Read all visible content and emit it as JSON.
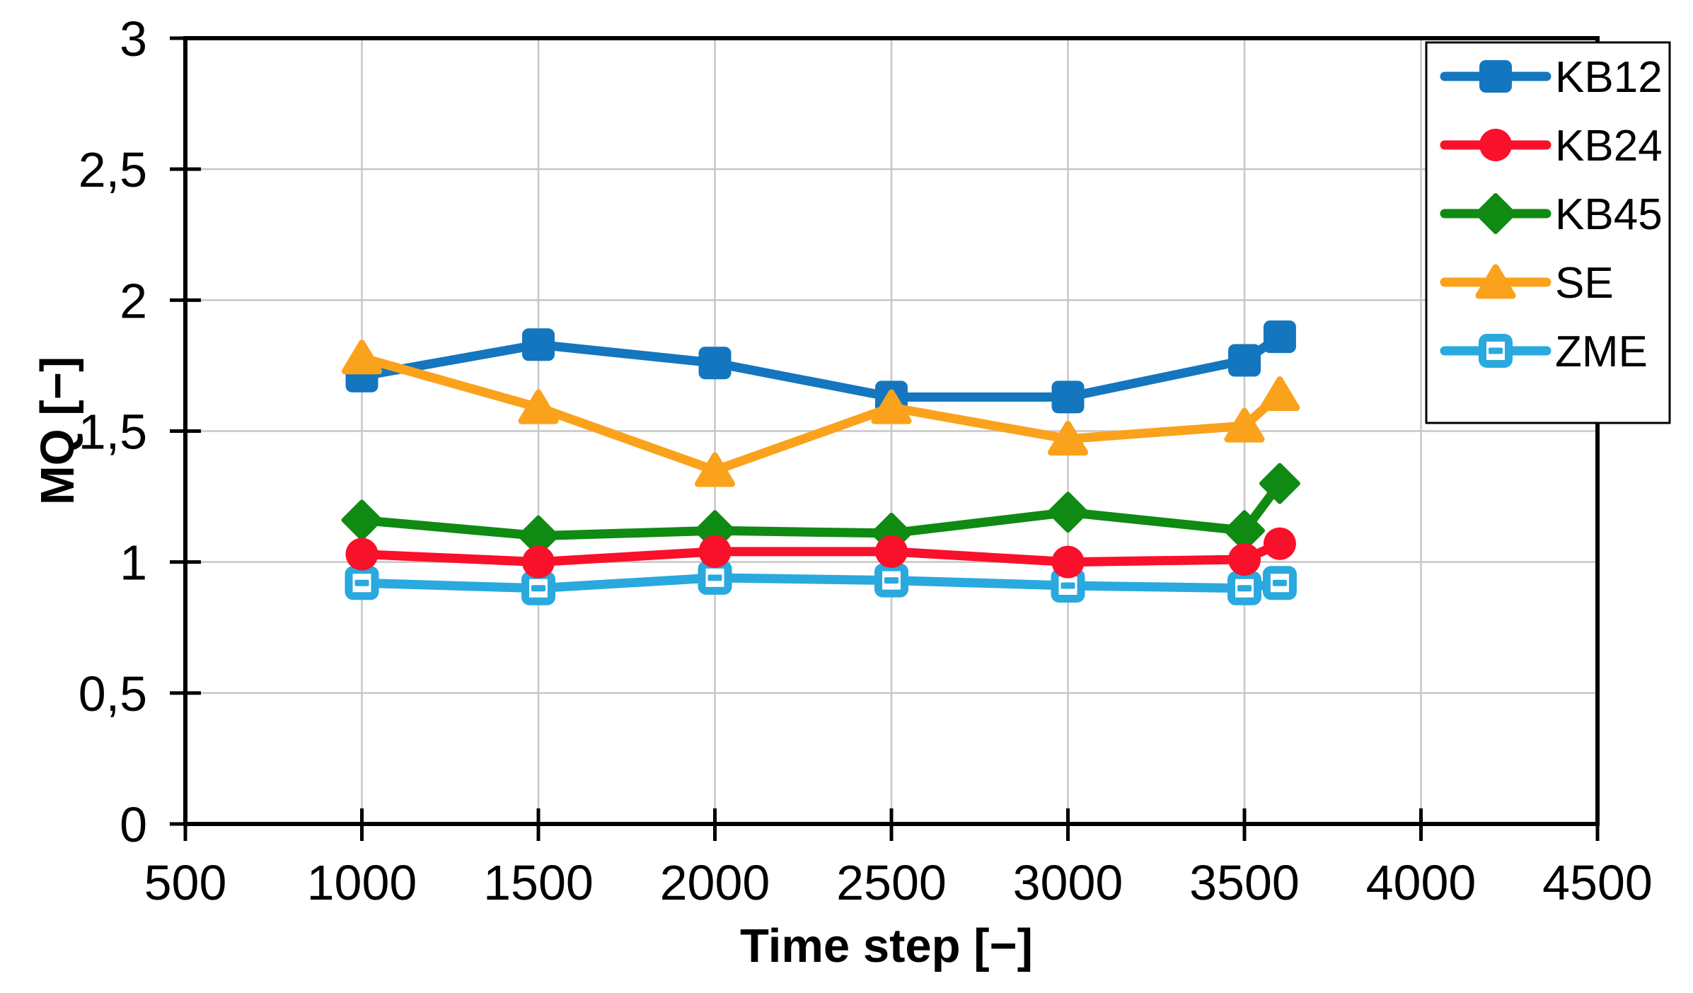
{
  "chart_data": {
    "type": "line",
    "title": "",
    "xlabel": "Time step [−]",
    "ylabel": "MQ [−]",
    "x": [
      1000,
      1500,
      2000,
      2500,
      3000,
      3500,
      3600
    ],
    "series": [
      {
        "name": "KB12",
        "color": "#1476BF",
        "marker": "square-filled",
        "values": [
          1.71,
          1.83,
          1.76,
          1.63,
          1.63,
          1.77,
          1.86
        ]
      },
      {
        "name": "KB24",
        "color": "#F9102A",
        "marker": "circle-filled",
        "values": [
          1.03,
          1.0,
          1.04,
          1.04,
          1.0,
          1.01,
          1.07
        ]
      },
      {
        "name": "KB45",
        "color": "#0F8A12",
        "marker": "diamond-filled",
        "values": [
          1.16,
          1.1,
          1.12,
          1.11,
          1.19,
          1.12,
          1.3
        ]
      },
      {
        "name": "SE",
        "color": "#FAA21B",
        "marker": "triangle-filled",
        "values": [
          1.78,
          1.59,
          1.35,
          1.59,
          1.47,
          1.52,
          1.64
        ]
      },
      {
        "name": "ZME",
        "color": "#29A9DE",
        "marker": "square-open-dash",
        "values": [
          0.92,
          0.9,
          0.94,
          0.93,
          0.91,
          0.9,
          0.92
        ]
      }
    ],
    "xlim": [
      500,
      4500
    ],
    "ylim": [
      0,
      3
    ],
    "xticks": {
      "values": [
        500,
        1000,
        1500,
        2000,
        2500,
        3000,
        3500,
        4000,
        4500
      ],
      "labels": [
        "500",
        "1000",
        "1500",
        "2000",
        "2500",
        "3000",
        "3500",
        "4000",
        "4500"
      ]
    },
    "yticks": {
      "values": [
        0,
        0.5,
        1,
        1.5,
        2,
        2.5,
        3
      ],
      "labels": [
        "0",
        "0,5",
        "1",
        "1,5",
        "2",
        "2,5",
        "3"
      ]
    },
    "grid": true,
    "legend_position": "top-right-overlay",
    "legend_entries": [
      "KB12",
      "KB24",
      "KB45",
      "SE",
      "ZME"
    ],
    "draw_order": [
      "KB12",
      "KB45",
      "ZME",
      "KB24",
      "SE"
    ]
  },
  "colors": {
    "axis": "#000000",
    "gridline": "#C6C6C6",
    "plot_background": "#FFFFFF",
    "legend_background": "#FFFFFF",
    "legend_border": "#000000"
  }
}
